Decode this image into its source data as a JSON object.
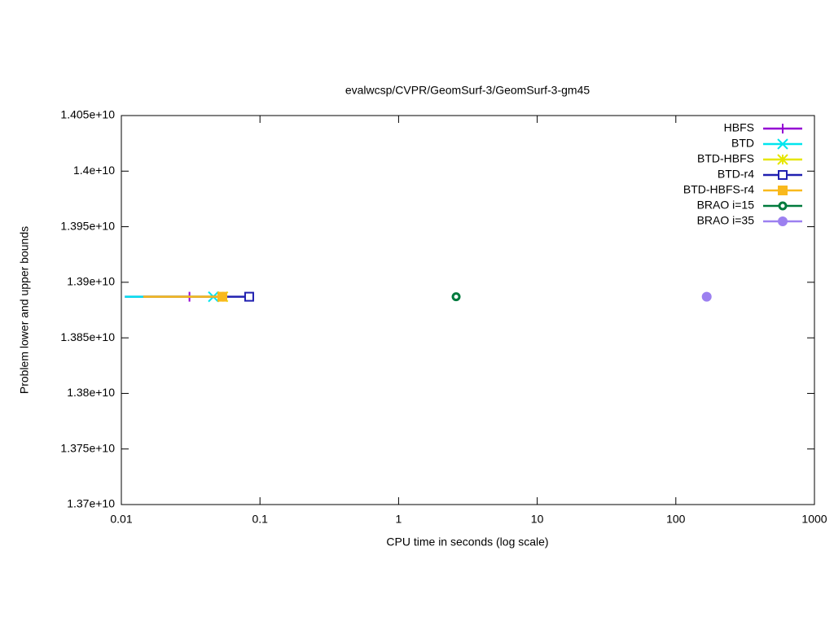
{
  "chart_data": {
    "type": "line",
    "title": "evalwcsp/CVPR/GeomSurf-3/GeomSurf-3-gm45",
    "x_label": "CPU time in seconds (log scale)",
    "y_label": "Problem lower and upper bounds",
    "xscale": "log",
    "xlim": [
      0.01,
      1000
    ],
    "xticks": [
      0.01,
      0.1,
      1,
      10,
      100,
      1000
    ],
    "ylim": [
      13700000000,
      14050000000
    ],
    "yticks": [
      {
        "value": 13700000000,
        "label": "1.37e+10"
      },
      {
        "value": 13750000000,
        "label": "1.375e+10"
      },
      {
        "value": 13800000000,
        "label": "1.38e+10"
      },
      {
        "value": 13850000000,
        "label": "1.385e+10"
      },
      {
        "value": 13900000000,
        "label": "1.39e+10"
      },
      {
        "value": 13950000000,
        "label": "1.395e+10"
      },
      {
        "value": 14000000000,
        "label": "1.4e+10"
      },
      {
        "value": 14050000000,
        "label": "1.405e+10"
      }
    ],
    "grid": false,
    "legend": "top-right",
    "series": [
      {
        "name": "HBFS",
        "color": "#9400d3",
        "marker": "plus",
        "x": [
          0.0106,
          0.031
        ],
        "values": [
          13887000000,
          13887000000
        ]
      },
      {
        "name": "BTD",
        "color": "#00e5ee",
        "marker": "cross",
        "x": [
          0.0106,
          0.0461
        ],
        "values": [
          13887000000,
          13887000000
        ]
      },
      {
        "name": "BTD-HBFS",
        "color": "#e6e600",
        "marker": "star",
        "x": [
          0.0144,
          0.054
        ],
        "values": [
          13887000000,
          13887000000
        ]
      },
      {
        "name": "BTD-r4",
        "color": "#2020b0",
        "marker": "square-open",
        "x": [
          0.0144,
          0.0836
        ],
        "values": [
          13887000000,
          13887000000
        ]
      },
      {
        "name": "BTD-HBFS-r4",
        "color": "#f9b91d",
        "marker": "square",
        "x": [
          0.0144,
          0.0535
        ],
        "values": [
          13887000000,
          13887000000
        ]
      },
      {
        "name": "BRAO i=15",
        "color": "#007a3d",
        "marker": "circle-dot",
        "x": [
          2.6
        ],
        "values": [
          13887000000
        ]
      },
      {
        "name": "BRAO i=35",
        "color": "#9c80f0",
        "marker": "circle",
        "x": [
          167
        ],
        "values": [
          13887000000
        ]
      }
    ]
  }
}
